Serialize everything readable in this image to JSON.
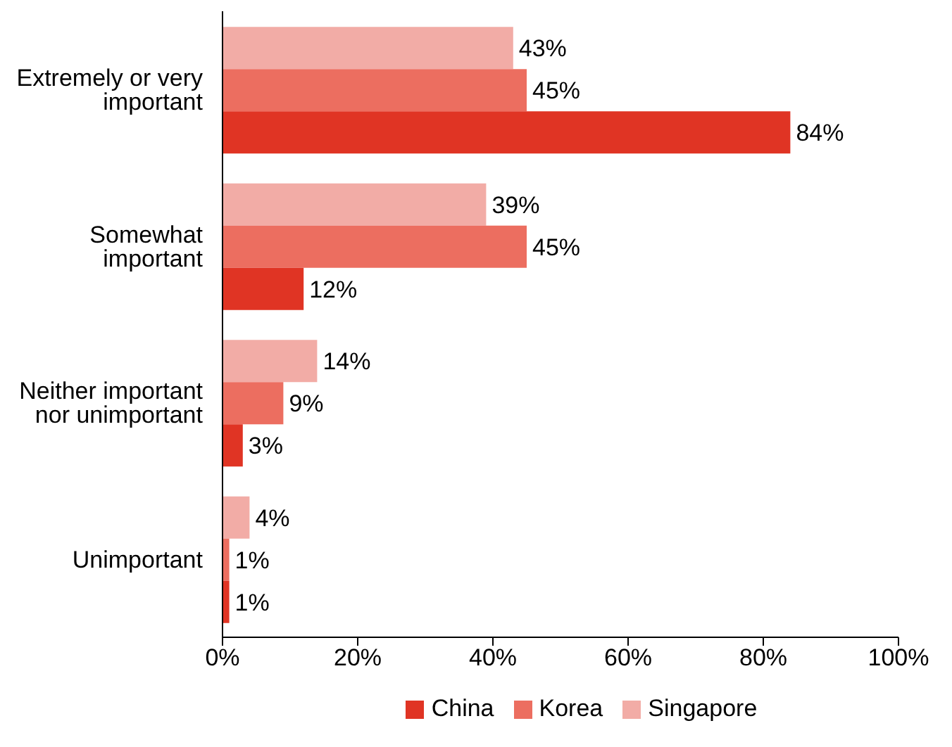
{
  "chart_data": {
    "type": "bar",
    "orientation": "horizontal",
    "categories": [
      "Extremely or very important",
      "Somewhat important",
      "Neither important nor unimportant",
      "Unimportant"
    ],
    "series": [
      {
        "name": "China",
        "color": "#e03424",
        "values": [
          84,
          12,
          3,
          1
        ],
        "value_labels": [
          "84%",
          "12%",
          "3%",
          "1%"
        ]
      },
      {
        "name": "Korea",
        "color": "#ec6e60",
        "values": [
          45,
          45,
          9,
          1
        ],
        "value_labels": [
          "45%",
          "45%",
          "9%",
          "1%"
        ]
      },
      {
        "name": "Singapore",
        "color": "#f2aca6",
        "values": [
          43,
          39,
          14,
          4
        ],
        "value_labels": [
          "43%",
          "39%",
          "14%",
          "4%"
        ]
      }
    ],
    "xlim": [
      0,
      100
    ],
    "xticks": [
      {
        "value": 0,
        "label": "0%"
      },
      {
        "value": 20,
        "label": "20%"
      },
      {
        "value": 40,
        "label": "40%"
      },
      {
        "value": 60,
        "label": "60%"
      },
      {
        "value": 80,
        "label": "80%"
      },
      {
        "value": 100,
        "label": "100%"
      }
    ],
    "grid": false,
    "legend": "bottom"
  }
}
